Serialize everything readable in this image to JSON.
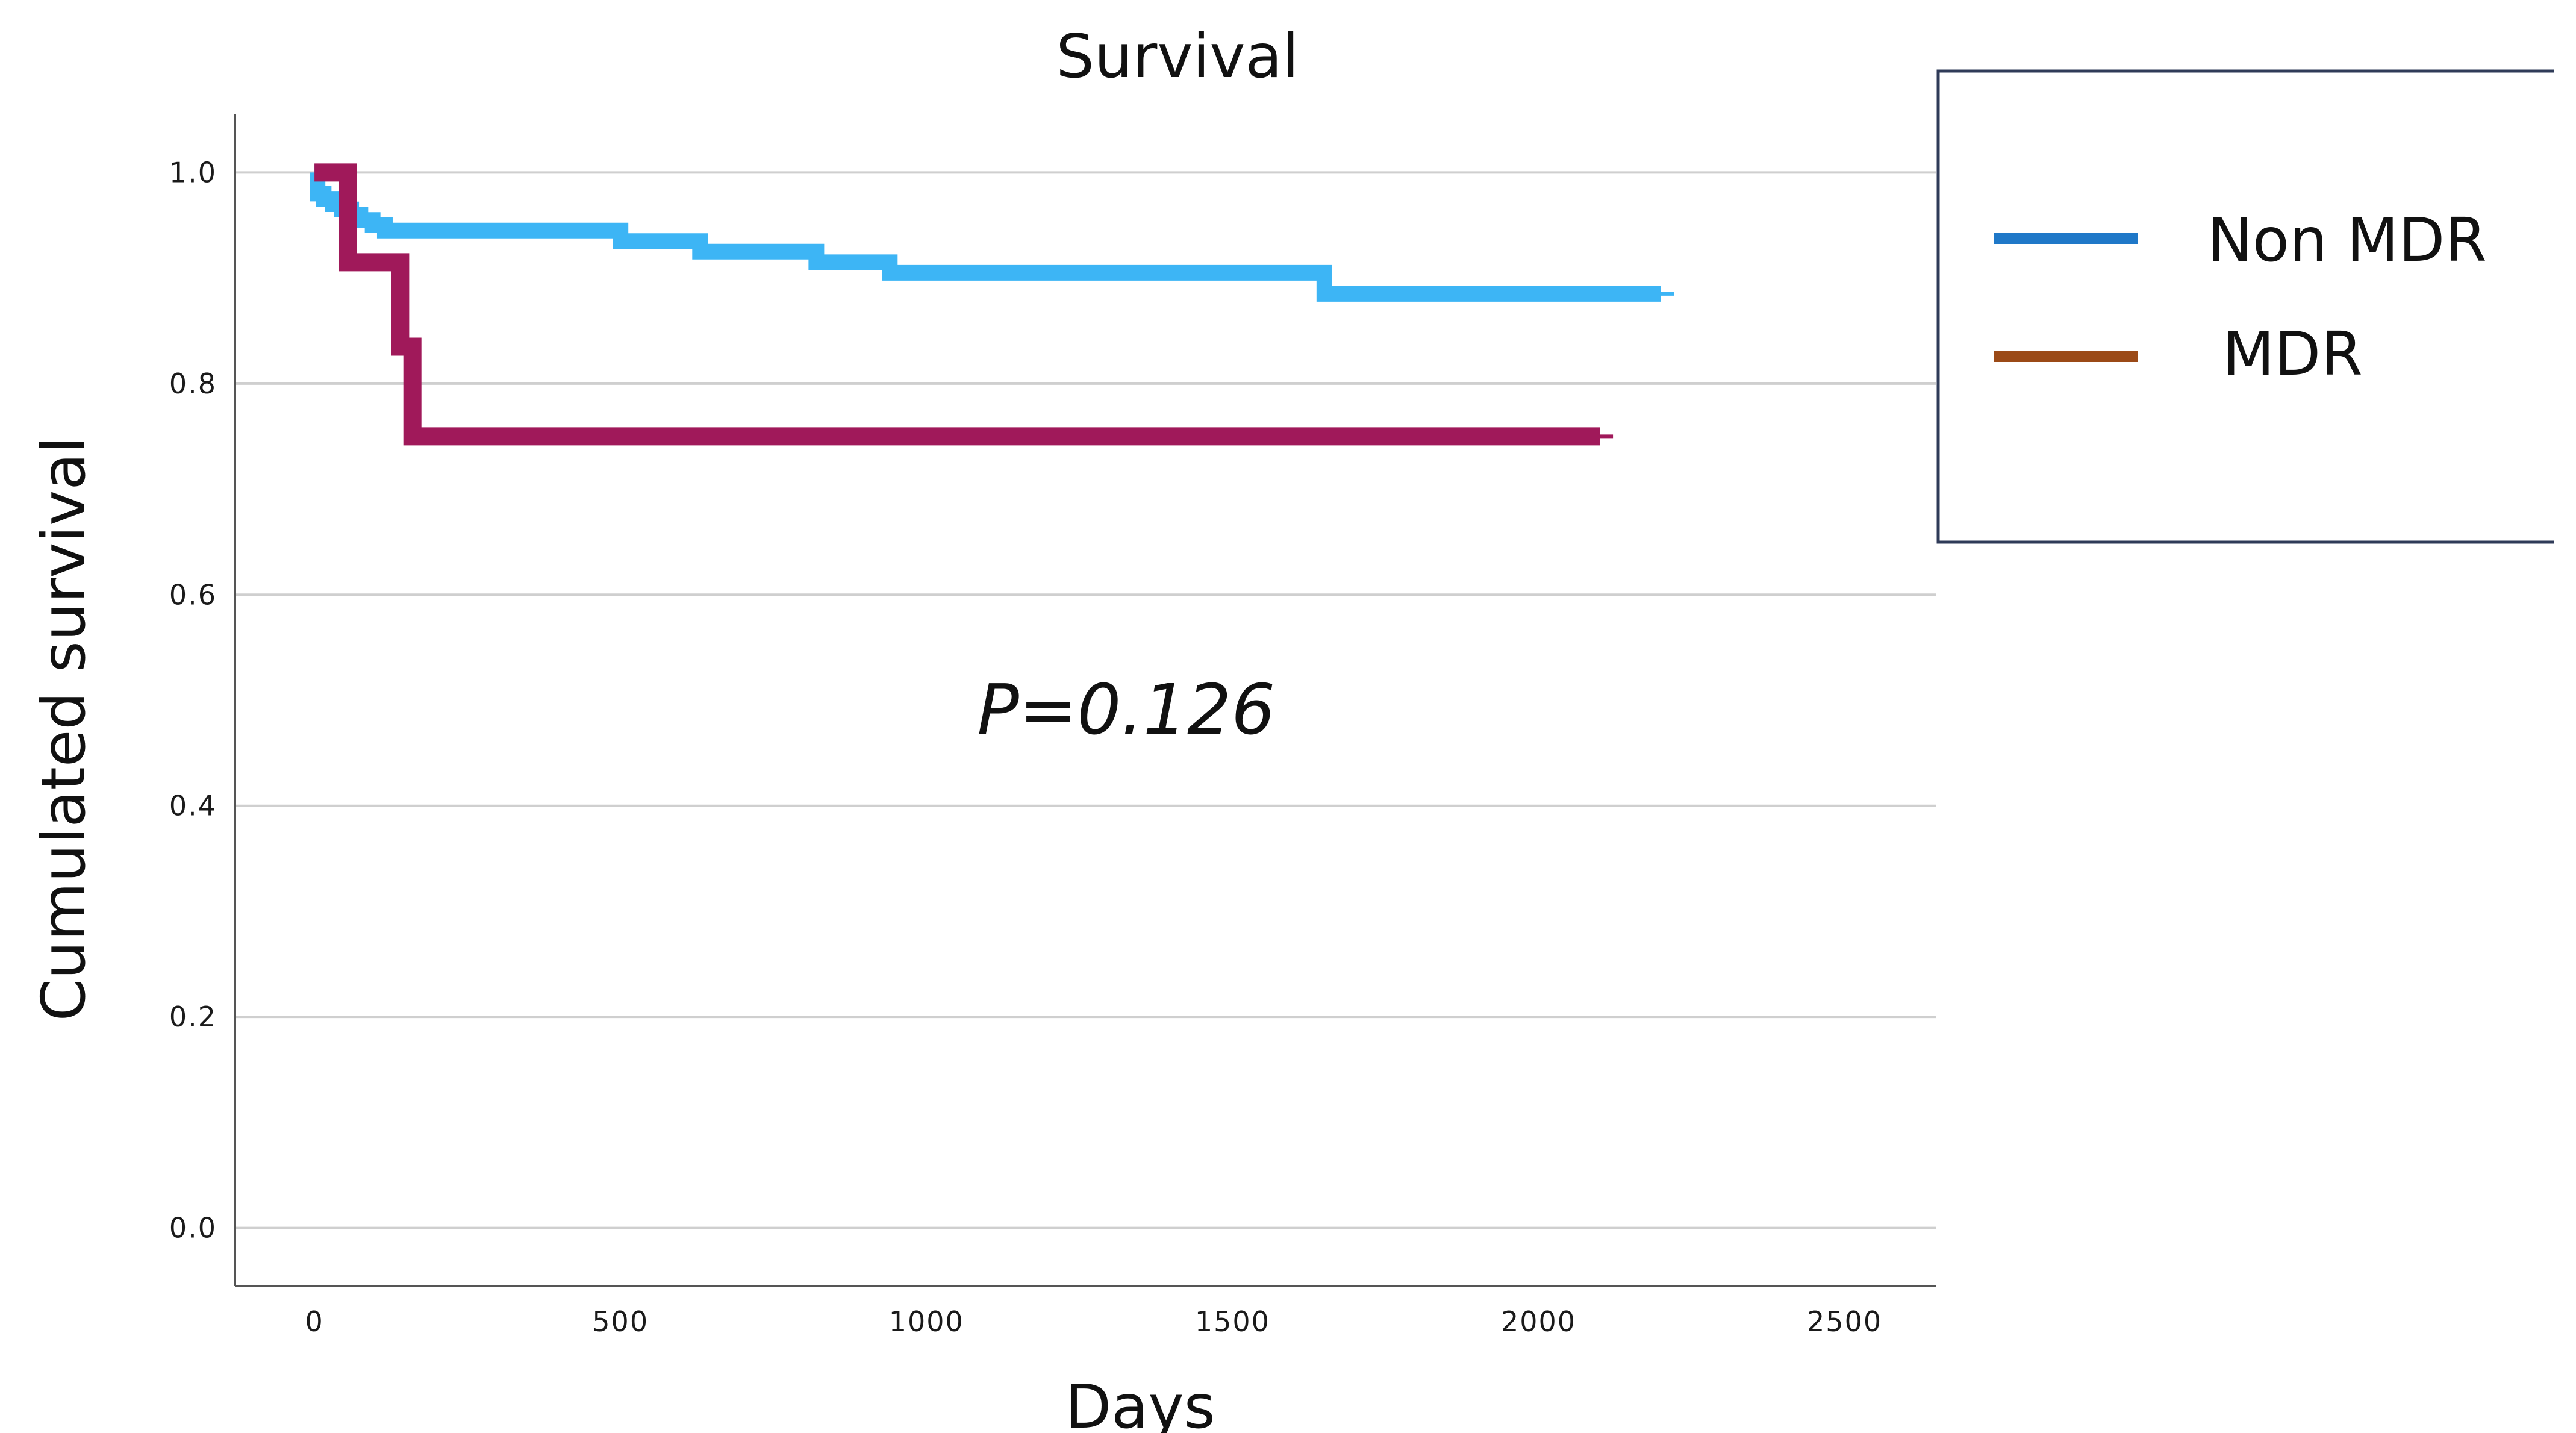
{
  "chart_data": {
    "type": "line",
    "title": "Survival",
    "xlabel": "Days",
    "ylabel": "Cumulated survival",
    "xlim": [
      -130,
      2650
    ],
    "ylim": [
      -0.055,
      1.055
    ],
    "x_ticks": [
      0,
      500,
      1000,
      1500,
      2000,
      2500
    ],
    "y_ticks": [
      0.0,
      0.2,
      0.4,
      0.6,
      0.8,
      1.0
    ],
    "y_tick_labels": [
      "0.0",
      "0.2",
      "0.4",
      "0.6",
      "0.8",
      "1.0"
    ],
    "grid": "horizontal",
    "annotation": "P=0.126",
    "legend": {
      "placement": "right",
      "entries": [
        "Non MDR",
        "MDR"
      ]
    },
    "series": [
      {
        "name": "Non MDR",
        "color": "#3db5f5",
        "legend_color": "#1f78c8",
        "step": true,
        "points": [
          [
            0,
            1.0
          ],
          [
            5,
            0.98
          ],
          [
            15,
            0.975
          ],
          [
            30,
            0.97
          ],
          [
            45,
            0.965
          ],
          [
            60,
            0.96
          ],
          [
            75,
            0.955
          ],
          [
            95,
            0.95
          ],
          [
            115,
            0.945
          ],
          [
            500,
            0.935
          ],
          [
            630,
            0.925
          ],
          [
            820,
            0.915
          ],
          [
            940,
            0.905
          ],
          [
            1650,
            0.885
          ],
          [
            2200,
            0.885
          ]
        ]
      },
      {
        "name": "MDR",
        "color": "#a0195a",
        "legend_color": "#9b4a17",
        "step": true,
        "points": [
          [
            0,
            1.0
          ],
          [
            55,
            1.0
          ],
          [
            55,
            0.915
          ],
          [
            140,
            0.915
          ],
          [
            140,
            0.835
          ],
          [
            160,
            0.835
          ],
          [
            160,
            0.75
          ],
          [
            2100,
            0.75
          ]
        ]
      }
    ]
  }
}
